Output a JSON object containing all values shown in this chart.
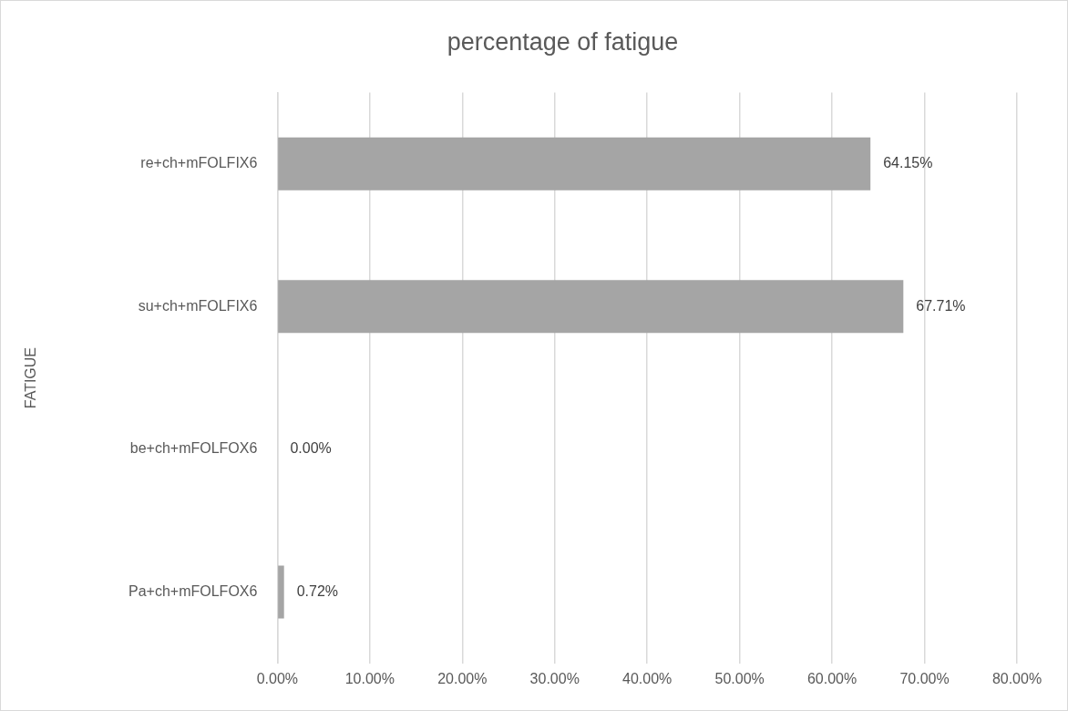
{
  "chart_data": {
    "type": "bar",
    "orientation": "horizontal",
    "title": "percentage of fatigue",
    "annotations": [
      "FATIGUE"
    ],
    "categories": [
      "re+ch+mFOLFIX6",
      "su+ch+mFOLFIX6",
      "be+ch+mFOLFOX6",
      "Pa+ch+mFOLFOX6"
    ],
    "values": [
      64.15,
      67.71,
      0,
      0.72
    ],
    "value_labels": [
      "64.15%",
      "67.71%",
      "0.00%",
      "0.72%"
    ],
    "color": "#a5a5a5",
    "xlim": [
      0,
      80
    ],
    "xticks": [
      {
        "value": 0,
        "label": "0.00%"
      },
      {
        "value": 10,
        "label": "10.00%"
      },
      {
        "value": 20,
        "label": "20.00%"
      },
      {
        "value": 30,
        "label": "30.00%"
      },
      {
        "value": 40,
        "label": "40.00%"
      },
      {
        "value": 50,
        "label": "50.00%"
      },
      {
        "value": 60,
        "label": "60.00%"
      },
      {
        "value": 70,
        "label": "70.00%"
      },
      {
        "value": 80,
        "label": "80.00%"
      }
    ],
    "grid": "x"
  }
}
